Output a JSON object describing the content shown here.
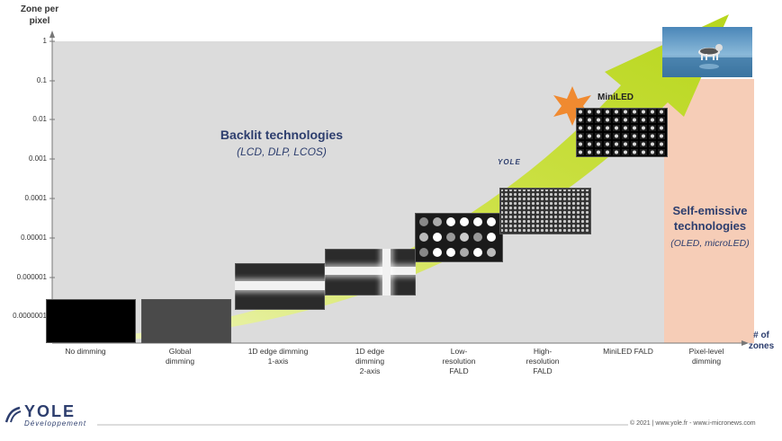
{
  "yaxis": {
    "title": "Zone per pixel",
    "ticks": [
      "1",
      "0.1",
      "0.01",
      "0.001",
      "0.0001",
      "0.00001",
      "0.000001",
      "0.0000001"
    ]
  },
  "xaxis": {
    "title": "# of zones",
    "categories": [
      "No dimming",
      "Global\ndimming",
      "1D edge dimming\n1-axis",
      "1D edge\ndimming\n2-axis",
      "Low-\nresolution\nFALD",
      "High-\nresolution\nFALD",
      "MiniLED FALD",
      "Pixel-level\ndimming"
    ]
  },
  "backlit": {
    "title": "Backlit technologies",
    "subtitle": "(LCD, DLP, LCOS)"
  },
  "self_emissive": {
    "title": "Self-emissive technologies",
    "subtitle": "(OLED, microLED)"
  },
  "miniled_label": "MiniLED",
  "arrow_logo": "YOLE",
  "footer": {
    "logo_text": "YOLE",
    "logo_sub": "Développement",
    "copyright": "© 2021 | www.yole.fr - www.i-micronews.com"
  },
  "colors": {
    "backlit_bg": "#dcdcdc",
    "self_emissive_bg": "#f6cdb7",
    "arrow": "#c8e03a",
    "star": "#f08a30",
    "text_dark": "#2d3e6e"
  }
}
